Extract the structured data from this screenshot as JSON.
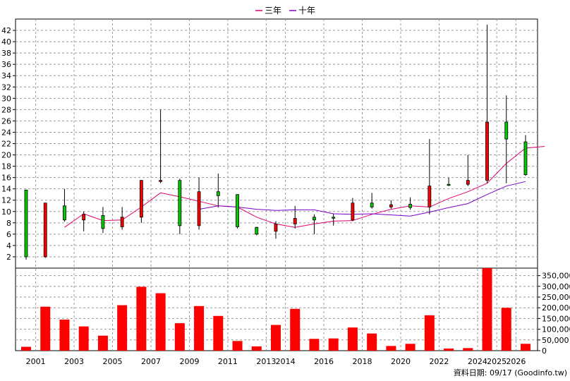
{
  "chart_data": {
    "type": "candlestick",
    "legend": [
      {
        "name": "三年",
        "color": "#e0006e"
      },
      {
        "name": "十年",
        "color": "#7a00c8"
      }
    ],
    "price_axis": {
      "ylim": [
        0,
        44
      ],
      "ticks": [
        2,
        4,
        6,
        8,
        10,
        12,
        14,
        16,
        18,
        20,
        22,
        24,
        26,
        28,
        30,
        32,
        34,
        36,
        38,
        40,
        42
      ]
    },
    "volume_axis": {
      "ylim": [
        0,
        385000
      ],
      "ticks": [
        0,
        50000,
        100000,
        150000,
        200000,
        250000,
        300000,
        350000
      ],
      "tick_labels": [
        "0",
        "50,000",
        "100,000",
        "150,000",
        "200,000",
        "250,000",
        "300,000",
        "350,000"
      ]
    },
    "x_labels": [
      "2001",
      "2003",
      "2005",
      "2007",
      "2009",
      "2011",
      "2013",
      "2014",
      "2016",
      "2018",
      "2020",
      "2022",
      "2024",
      "2025",
      "2026"
    ],
    "candles": [
      {
        "open": 2.0,
        "close": 13.8,
        "high": 13.8,
        "low": 1.5,
        "volume": 18000
      },
      {
        "open": 11.5,
        "close": 2.0,
        "high": 11.5,
        "low": 1.8,
        "volume": 205000
      },
      {
        "open": 8.5,
        "close": 11.0,
        "high": 14.0,
        "low": 8.2,
        "volume": 145000
      },
      {
        "open": 9.5,
        "close": 8.5,
        "high": 10.0,
        "low": 6.5,
        "volume": 113000
      },
      {
        "open": 7.0,
        "close": 9.3,
        "high": 10.8,
        "low": 6.2,
        "volume": 70000
      },
      {
        "open": 9.0,
        "close": 7.3,
        "high": 10.8,
        "low": 6.8,
        "volume": 212000
      },
      {
        "open": 15.5,
        "close": 9.0,
        "high": 15.5,
        "low": 8.0,
        "volume": 298000
      },
      {
        "open": 15.5,
        "close": 15.3,
        "high": 28.0,
        "low": 15.0,
        "volume": 268000
      },
      {
        "open": 7.5,
        "close": 15.5,
        "high": 15.8,
        "low": 6.0,
        "volume": 128000
      },
      {
        "open": 13.5,
        "close": 7.5,
        "high": 16.0,
        "low": 6.8,
        "volume": 208000
      },
      {
        "open": 12.8,
        "close": 13.5,
        "high": 16.7,
        "low": 10.7,
        "volume": 162000
      },
      {
        "open": 7.3,
        "close": 13.0,
        "high": 13.0,
        "low": 7.0,
        "volume": 45000
      },
      {
        "open": 6.0,
        "close": 7.2,
        "high": 7.3,
        "low": 5.8,
        "volume": 20000
      },
      {
        "open": 7.8,
        "close": 6.5,
        "high": 8.3,
        "low": 5.2,
        "volume": 120000
      },
      {
        "open": 8.8,
        "close": 7.8,
        "high": 11.0,
        "low": 7.0,
        "volume": 195000
      },
      {
        "open": 8.5,
        "close": 9.0,
        "high": 9.5,
        "low": 6.0,
        "volume": 55000
      },
      {
        "open": 9.0,
        "close": 9.0,
        "high": 9.6,
        "low": 7.5,
        "volume": 57000
      },
      {
        "open": 11.5,
        "close": 8.5,
        "high": 12.4,
        "low": 8.3,
        "volume": 108000
      },
      {
        "open": 10.8,
        "close": 11.5,
        "high": 13.3,
        "low": 10.5,
        "volume": 80000
      },
      {
        "open": 11.2,
        "close": 10.8,
        "high": 12.0,
        "low": 10.5,
        "volume": 22000
      },
      {
        "open": 10.7,
        "close": 11.3,
        "high": 12.5,
        "low": 10.3,
        "volume": 32000
      },
      {
        "open": 14.5,
        "close": 10.8,
        "high": 22.8,
        "low": 9.5,
        "volume": 165000
      },
      {
        "open": 14.8,
        "close": 14.8,
        "high": 16.0,
        "low": 14.5,
        "volume": 10000
      },
      {
        "open": 15.5,
        "close": 14.8,
        "high": 20.0,
        "low": 14.5,
        "volume": 12000
      },
      {
        "open": 25.8,
        "close": 15.5,
        "high": 43.0,
        "low": 15.0,
        "volume": 385000
      },
      {
        "open": 22.8,
        "close": 25.8,
        "high": 30.5,
        "low": 15.0,
        "volume": 200000
      },
      {
        "open": 16.5,
        "close": 22.3,
        "high": 23.5,
        "low": 16.3,
        "volume": 32000
      }
    ],
    "series": [
      {
        "name": "三年",
        "start_index": 2,
        "values": [
          7.2,
          9.6,
          8.4,
          8.5,
          10.8,
          13.3,
          12.6,
          11.8,
          11.0,
          10.8,
          9.0,
          7.8,
          7.2,
          7.8,
          8.3,
          8.4,
          9.5,
          10.4,
          11.0,
          10.8,
          12.3,
          13.5,
          15.0,
          18.5,
          21.2,
          21.5
        ]
      },
      {
        "name": "十年",
        "start_index": 9,
        "values": [
          10.4,
          11.0,
          10.8,
          10.4,
          10.2,
          10.3,
          10.3,
          9.6,
          9.5,
          9.6,
          9.4,
          9.2,
          9.9,
          10.7,
          11.4,
          13.0,
          14.5,
          15.3
        ]
      }
    ],
    "footer": "資料日期: 09/17 (Goodinfo.tw)"
  }
}
